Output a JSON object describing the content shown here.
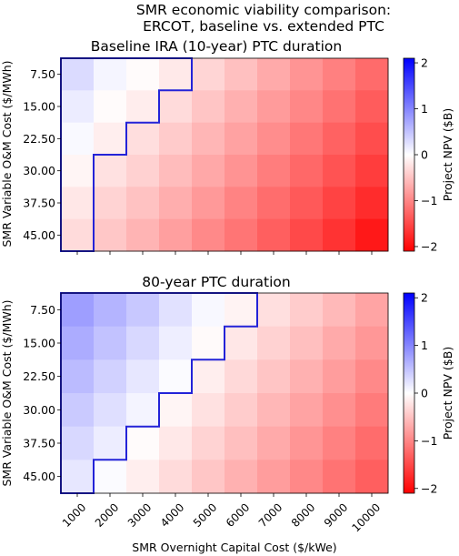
{
  "figure": {
    "suptitle_lines": [
      "SMR economic viability comparison:",
      "ERCOT, baseline vs. extended PTC"
    ],
    "xlabel": "SMR Overnight Capital Cost ($/kWe)"
  },
  "colors": {
    "positive_max": "#0000ff",
    "neutral": "#ffffff",
    "negative_max": "#ff0000",
    "boundary": "#2323d8"
  },
  "chart_data": [
    {
      "type": "heatmap",
      "title": "Baseline IRA (10-year) PTC duration",
      "x_categories": [
        "1000",
        "2000",
        "3000",
        "4000",
        "5000",
        "6000",
        "7000",
        "8000",
        "9000",
        "10000"
      ],
      "y_categories": [
        "7.50",
        "15.00",
        "22.50",
        "30.00",
        "37.50",
        "45.00"
      ],
      "ylabel": "SMR Variable O&M Cost ($/MWh)",
      "colorbar_label": "Project NPV ($B)",
      "color_range": [
        -2.1,
        2.1
      ],
      "colorbar_ticks": [
        2,
        1,
        0,
        -1,
        -2
      ],
      "values": [
        [
          0.3,
          0.08,
          -0.03,
          -0.18,
          -0.35,
          -0.52,
          -0.7,
          -0.88,
          -1.05,
          -1.22
        ],
        [
          0.16,
          -0.03,
          -0.15,
          -0.3,
          -0.48,
          -0.65,
          -0.82,
          -0.99,
          -1.16,
          -1.34
        ],
        [
          0.05,
          -0.14,
          -0.27,
          -0.43,
          -0.6,
          -0.77,
          -0.94,
          -1.12,
          -1.29,
          -1.47
        ],
        [
          -0.08,
          -0.25,
          -0.38,
          -0.55,
          -0.72,
          -0.89,
          -1.07,
          -1.24,
          -1.42,
          -1.6
        ],
        [
          -0.2,
          -0.36,
          -0.5,
          -0.67,
          -0.84,
          -1.02,
          -1.2,
          -1.37,
          -1.55,
          -1.74
        ],
        [
          -0.3,
          -0.46,
          -0.62,
          -0.79,
          -0.97,
          -1.14,
          -1.32,
          -1.5,
          -1.68,
          -1.9
        ]
      ],
      "viable_boundary_cols": [
        3,
        2,
        1,
        0,
        0,
        0
      ]
    },
    {
      "type": "heatmap",
      "title": "80-year PTC duration",
      "x_categories": [
        "1000",
        "2000",
        "3000",
        "4000",
        "5000",
        "6000",
        "7000",
        "8000",
        "9000",
        "10000"
      ],
      "y_categories": [
        "7.50",
        "15.00",
        "22.50",
        "30.00",
        "37.50",
        "45.00"
      ],
      "ylabel": "SMR Variable O&M Cost ($/MWh)",
      "colorbar_label": "Project NPV ($B)",
      "color_range": [
        -2.1,
        2.1
      ],
      "colorbar_ticks": [
        2,
        1,
        0,
        -1,
        -2
      ],
      "values": [
        [
          0.8,
          0.62,
          0.45,
          0.25,
          0.06,
          -0.1,
          -0.26,
          -0.42,
          -0.58,
          -0.75
        ],
        [
          0.68,
          0.5,
          0.32,
          0.14,
          -0.04,
          -0.2,
          -0.37,
          -0.53,
          -0.7,
          -0.86
        ],
        [
          0.56,
          0.38,
          0.2,
          0.03,
          -0.14,
          -0.31,
          -0.48,
          -0.64,
          -0.81,
          -0.97
        ],
        [
          0.44,
          0.26,
          0.09,
          -0.08,
          -0.25,
          -0.42,
          -0.59,
          -0.76,
          -0.92,
          -1.09
        ],
        [
          0.32,
          0.15,
          -0.03,
          -0.19,
          -0.36,
          -0.53,
          -0.7,
          -0.87,
          -1.04,
          -1.21
        ],
        [
          0.2,
          0.03,
          -0.14,
          -0.3,
          -0.47,
          -0.64,
          -0.81,
          -0.98,
          -1.15,
          -1.32
        ]
      ],
      "viable_boundary_cols": [
        5,
        4,
        3,
        2,
        1,
        0
      ]
    }
  ]
}
